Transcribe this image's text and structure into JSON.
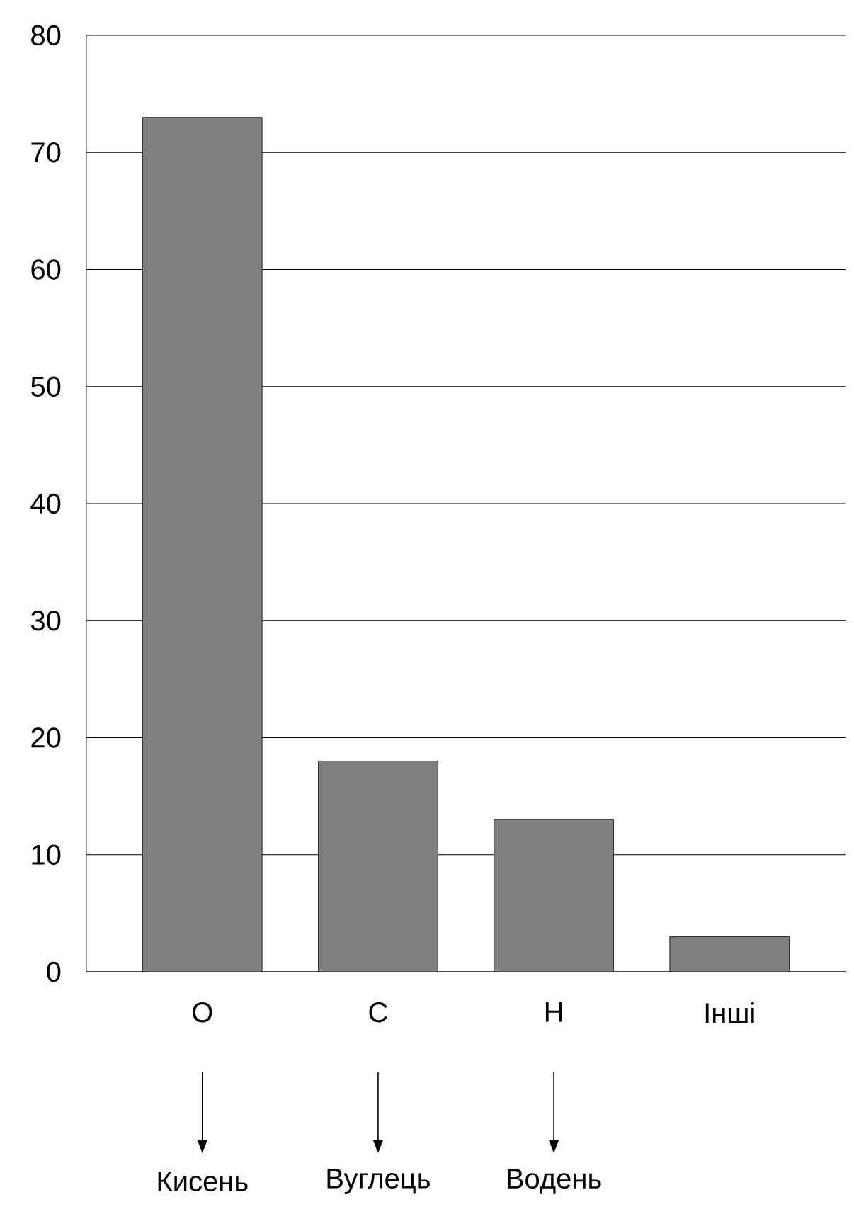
{
  "chart_data": {
    "type": "bar",
    "categories": [
      "O",
      "C",
      "H",
      "Інші"
    ],
    "values": [
      73,
      18,
      13,
      3
    ],
    "color": "#808080",
    "ylim": [
      0,
      80
    ],
    "yticks": [
      0,
      10,
      20,
      30,
      40,
      50,
      60,
      70,
      80
    ],
    "grid": "y",
    "annotations": [
      "Кисень",
      "Вуглець",
      "Водень"
    ]
  }
}
